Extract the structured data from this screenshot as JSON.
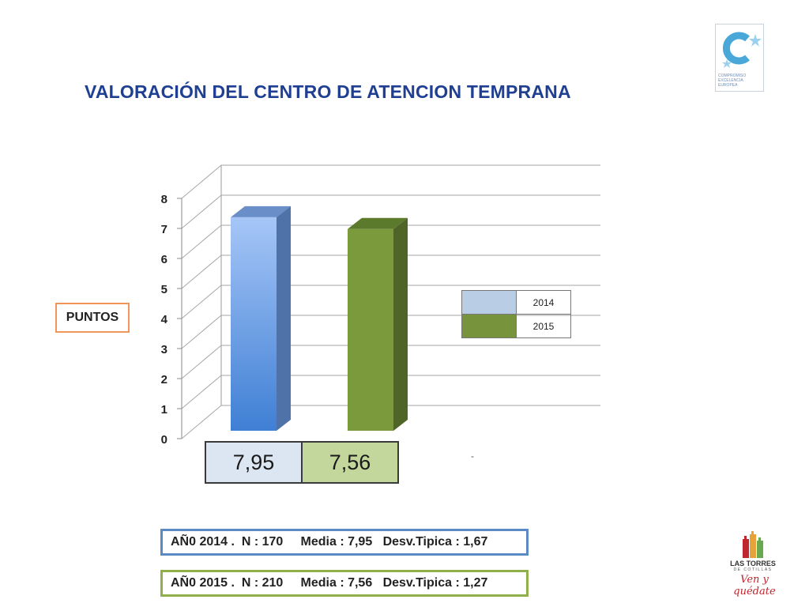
{
  "title": "VALORACIÓN DEL CENTRO DE ATENCION TEMPRANA",
  "logo_top": {
    "text": "COMPROMISO EXCELENCIA EUROPEA"
  },
  "y_axis_box": "PUNTOS",
  "chart_data": {
    "type": "bar",
    "categories": [
      "2014",
      "2015"
    ],
    "values": [
      7.95,
      7.56
    ],
    "ylim": [
      0,
      8
    ],
    "yticks": [
      "0",
      "1",
      "2",
      "3",
      "4",
      "5",
      "6",
      "7",
      "8"
    ],
    "colors": [
      "#8fb4e6",
      "#7a9a3c"
    ],
    "grid": true,
    "legend": {
      "position": "right",
      "entries": [
        {
          "label": "2014",
          "color": "#b9cde5"
        },
        {
          "label": "2015",
          "color": "#77933c"
        }
      ]
    },
    "data_labels": [
      "7,95",
      "7,56"
    ]
  },
  "value_cells": [
    {
      "text": "7,95",
      "bg": "#dce6f2"
    },
    {
      "text": "7,56",
      "bg": "#c3d69b"
    }
  ],
  "dash": "-",
  "stats": [
    {
      "text": "AÑ0 2014 .  N : 170     Media : 7,95   Desv.Tipica : 1,67"
    },
    {
      "text": "AÑ0 2015 .  N : 210     Media : 7,56   Desv.Tipica : 1,27"
    }
  ],
  "logo_bottom": {
    "name": "LAS TORRES",
    "sub": "DE COTILLAS",
    "slogan": "Ven y quédate"
  }
}
